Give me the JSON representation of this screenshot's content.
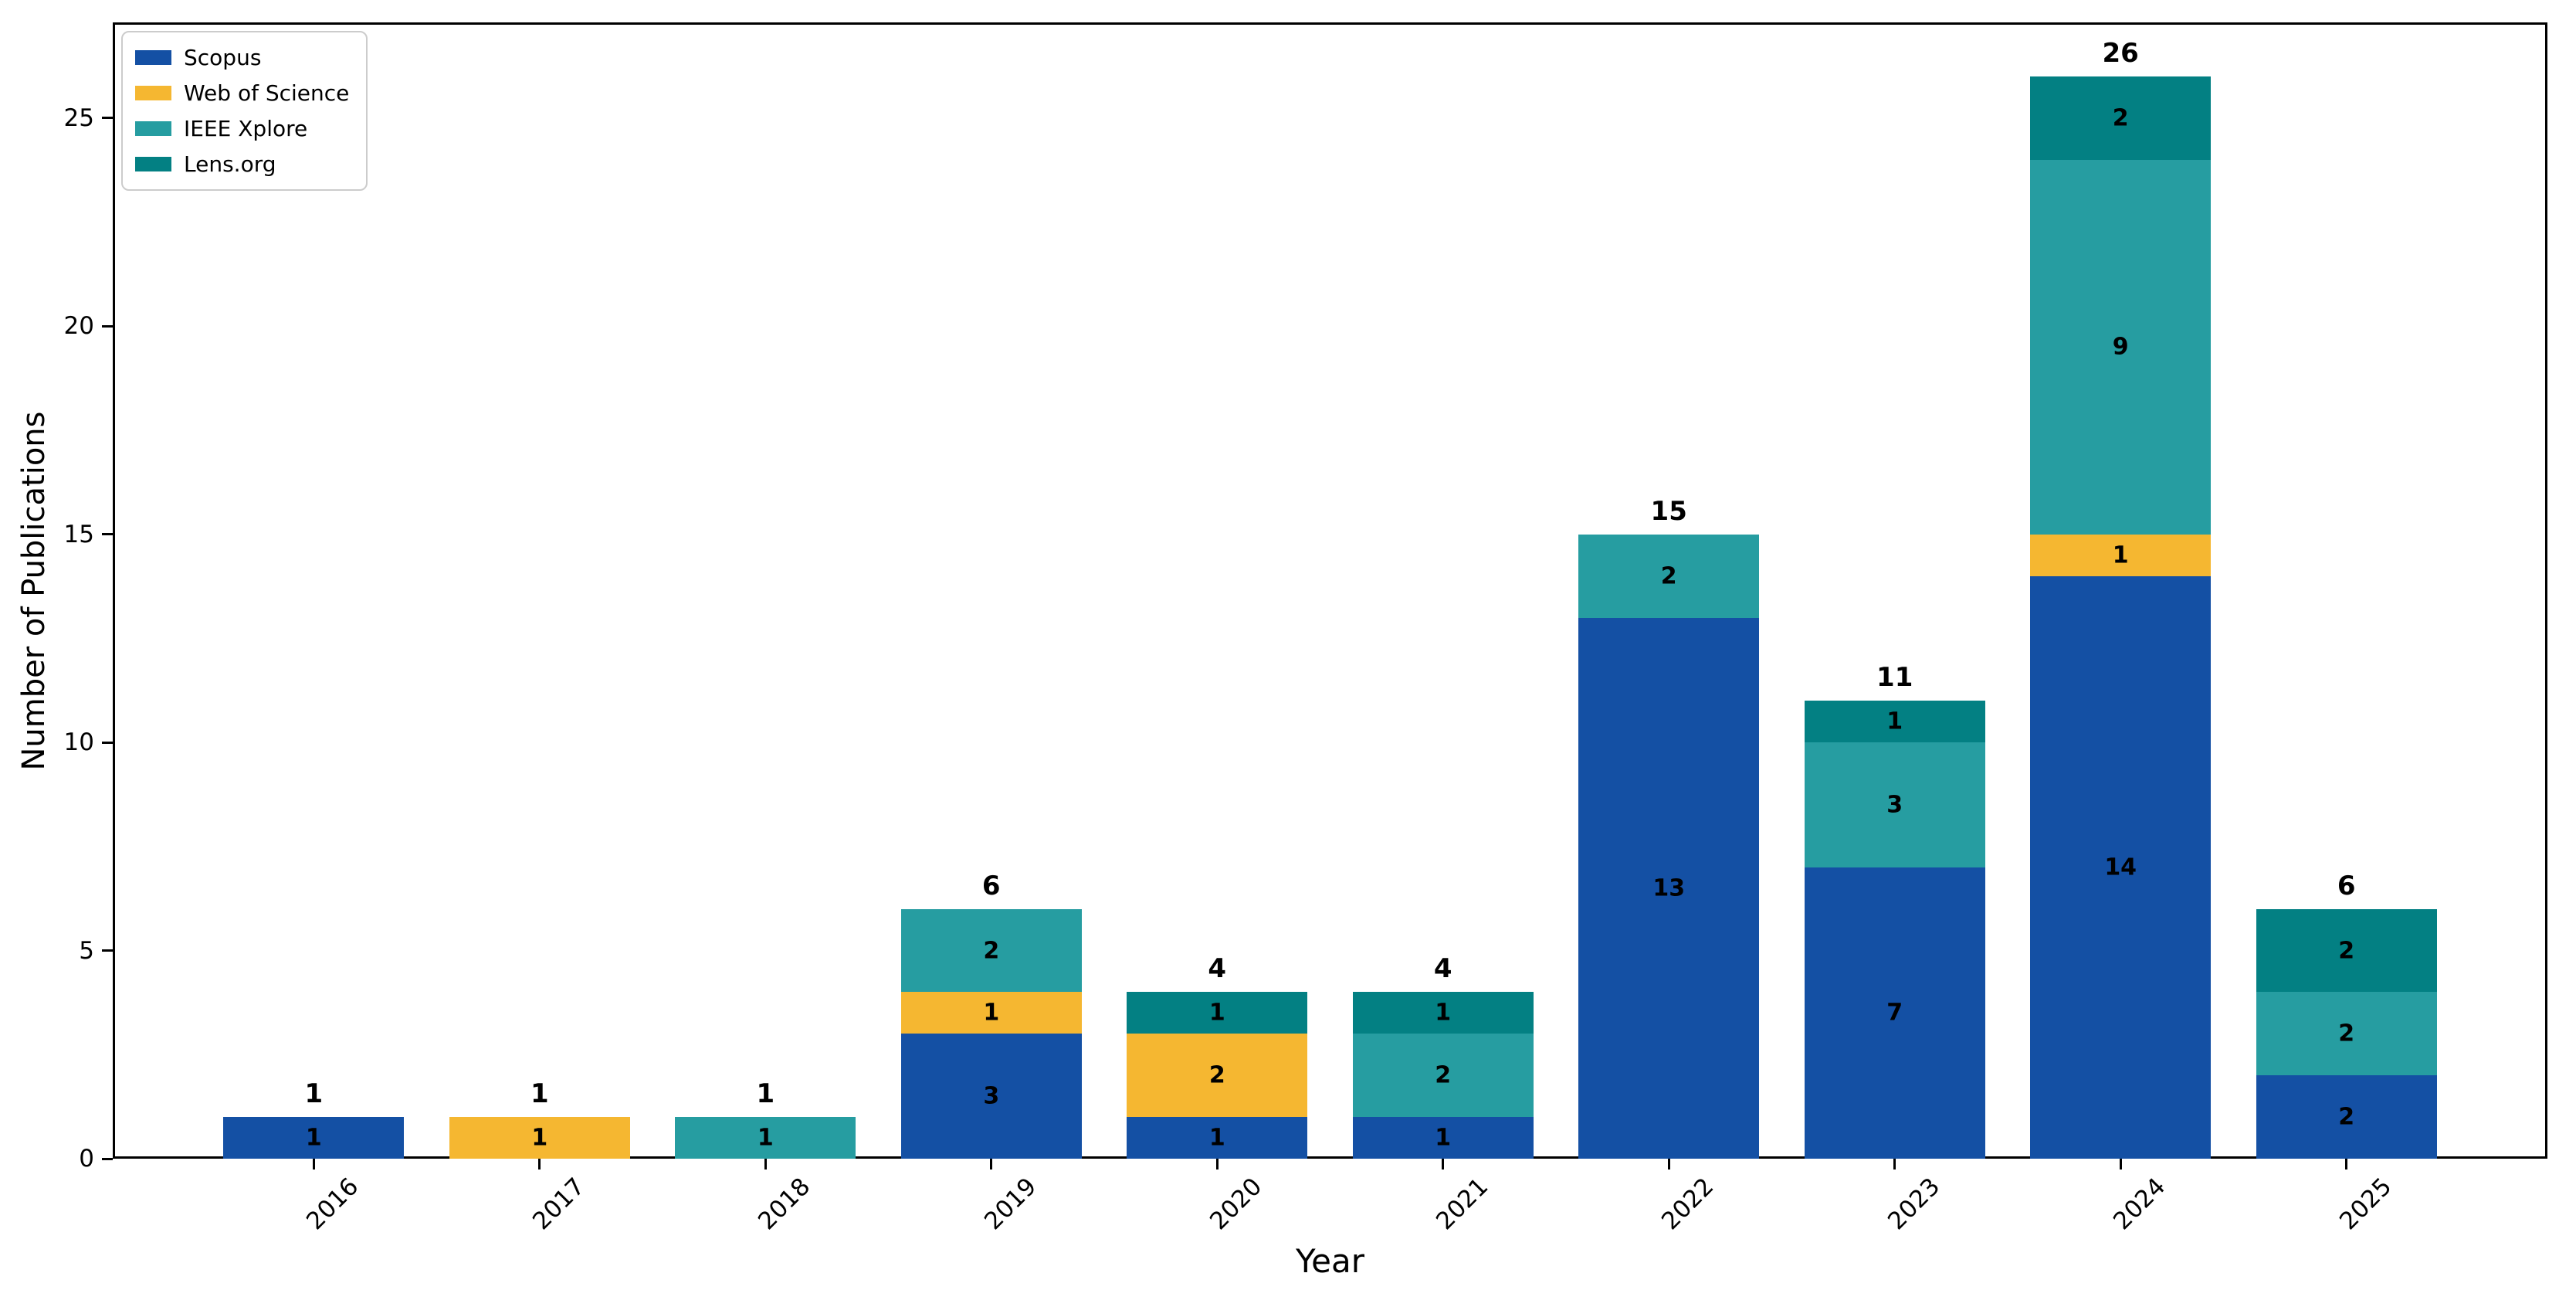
{
  "chart_data": {
    "type": "bar",
    "stacked": true,
    "title": "",
    "xlabel": "Year",
    "ylabel": "Number of Publications",
    "categories": [
      "2016",
      "2017",
      "2018",
      "2019",
      "2020",
      "2021",
      "2022",
      "2023",
      "2024",
      "2025"
    ],
    "series": [
      {
        "name": "Scopus",
        "color": "#1450a4",
        "values": [
          1,
          0,
          0,
          3,
          1,
          1,
          13,
          7,
          14,
          2
        ]
      },
      {
        "name": "Web of Science",
        "color": "#f5b731",
        "values": [
          0,
          1,
          0,
          1,
          2,
          0,
          0,
          0,
          1,
          0
        ]
      },
      {
        "name": "IEEE Xplore",
        "color": "#269da1",
        "values": [
          0,
          0,
          1,
          2,
          0,
          2,
          2,
          3,
          9,
          2
        ]
      },
      {
        "name": "Lens.org",
        "color": "#038083",
        "values": [
          0,
          0,
          0,
          0,
          1,
          1,
          0,
          1,
          2,
          2
        ]
      }
    ],
    "totals": [
      1,
      1,
      1,
      6,
      4,
      4,
      15,
      11,
      26,
      6
    ],
    "yticks": [
      0,
      5,
      10,
      15,
      20,
      25
    ],
    "ylim": [
      0,
      27.3
    ],
    "grid": false,
    "legend_position": "upper left",
    "colors": {
      "background": "#ffffff",
      "spine": "#000000",
      "text": "#000000",
      "legend_border": "#cccccc"
    }
  }
}
